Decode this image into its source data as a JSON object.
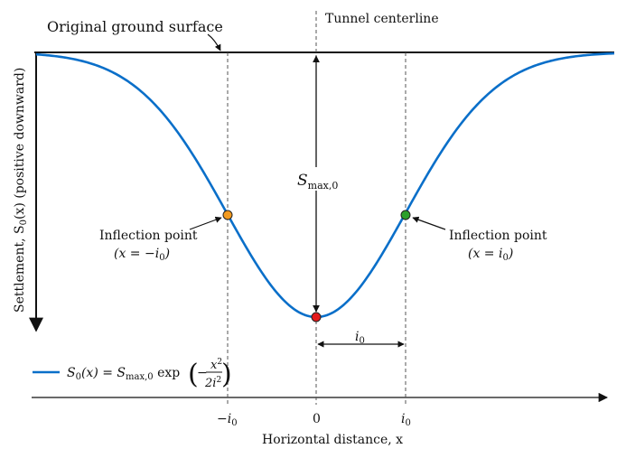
{
  "labels": {
    "ground_surface": "Original ground surface",
    "tunnel_centerline": "Tunnel centerline",
    "smax": "S",
    "smax_sub": "max,0",
    "i0_dim": "i",
    "i0_dim_sub": "0",
    "inflection_left_title": "Inflection point",
    "inflection_left_eq": "(x = −i",
    "inflection_left_eq_sub": "0",
    "inflection_left_eq_end": ")",
    "inflection_right_title": "Inflection point",
    "inflection_right_eq": "(x = i",
    "inflection_right_eq_sub": "0",
    "inflection_right_eq_end": ")",
    "y_axis": "Settlement, S",
    "y_axis_sub": "0",
    "y_axis_end": "(x) (positive downward)",
    "x_axis": "Horizontal distance, x",
    "tick_left": "−i",
    "tick_left_sub": "0",
    "tick_center": "0",
    "tick_right": "i",
    "tick_right_sub": "0"
  },
  "legend": {
    "lhs": "S",
    "lhs_sub": "0",
    "lhs_end": "(x) = S",
    "smax_sub": "max,0",
    "exp": " exp",
    "num": "x",
    "num_sup": "2",
    "den": "2i",
    "den_sub": "0",
    "den_sup": "2",
    "minus": "−"
  },
  "colors": {
    "curve": "#0a6fc9",
    "left_point": "#f39a1e",
    "right_point": "#2ca02c",
    "max_point": "#e41a1c",
    "axis": "#111111",
    "guide": "#555555"
  },
  "markers": {
    "left_inflection": "orange-dot",
    "right_inflection": "green-dot",
    "max_settlement": "red-dot"
  }
}
